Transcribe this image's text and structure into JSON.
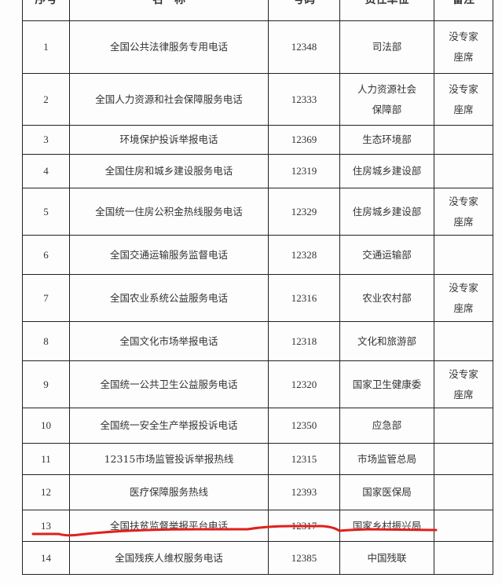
{
  "table": {
    "headers": [
      "序号",
      "名　称",
      "号码",
      "责任单位",
      "备注"
    ],
    "rows": [
      {
        "no": "1",
        "name": "全国公共法律服务专用电话",
        "number": "12348",
        "unit": "司法部",
        "note": "没专家座席"
      },
      {
        "no": "2",
        "name": "全国人力资源和社会保障服务电话",
        "number": "12333",
        "unit": "人力资源社会保障部",
        "note": "没专家座席"
      },
      {
        "no": "3",
        "name": "环境保护投诉举报电话",
        "number": "12369",
        "unit": "生态环境部",
        "note": ""
      },
      {
        "no": "4",
        "name": "全国住房和城乡建设服务电话",
        "number": "12319",
        "unit": "住房城乡建设部",
        "note": ""
      },
      {
        "no": "5",
        "name": "全国统一住房公积金热线服务电话",
        "number": "12329",
        "unit": "住房城乡建设部",
        "note": "没专家座席"
      },
      {
        "no": "6",
        "name": "全国交通运输服务监督电话",
        "number": "12328",
        "unit": "交通运输部",
        "note": ""
      },
      {
        "no": "7",
        "name": "全国农业系统公益服务电话",
        "number": "12316",
        "unit": "农业农村部",
        "note": "没专家座席"
      },
      {
        "no": "8",
        "name": "全国文化市场举报电话",
        "number": "12318",
        "unit": "文化和旅游部",
        "note": ""
      },
      {
        "no": "9",
        "name": "全国统一公共卫生公益服务电话",
        "number": "12320",
        "unit": "国家卫生健康委",
        "note": "没专家座席"
      },
      {
        "no": "10",
        "name": "全国统一安全生产举报投诉电话",
        "number": "12350",
        "unit": "应急部",
        "note": ""
      },
      {
        "no": "11",
        "name": "12315市场监管投诉举报热线",
        "number": "12315",
        "unit": "市场监管总局",
        "note": ""
      },
      {
        "no": "12",
        "name": "医疗保障服务热线",
        "number": "12393",
        "unit": "国家医保局",
        "note": ""
      },
      {
        "no": "13",
        "name": "全国扶贫监督举报平台电话",
        "number": "12317",
        "unit": "国家乡村振兴局",
        "note": ""
      },
      {
        "no": "14",
        "name": "全国残疾人维权服务电话",
        "number": "12385",
        "unit": "中国残联",
        "note": ""
      }
    ]
  },
  "annotation": {
    "color": "#e0201c",
    "marked_row": "13"
  }
}
